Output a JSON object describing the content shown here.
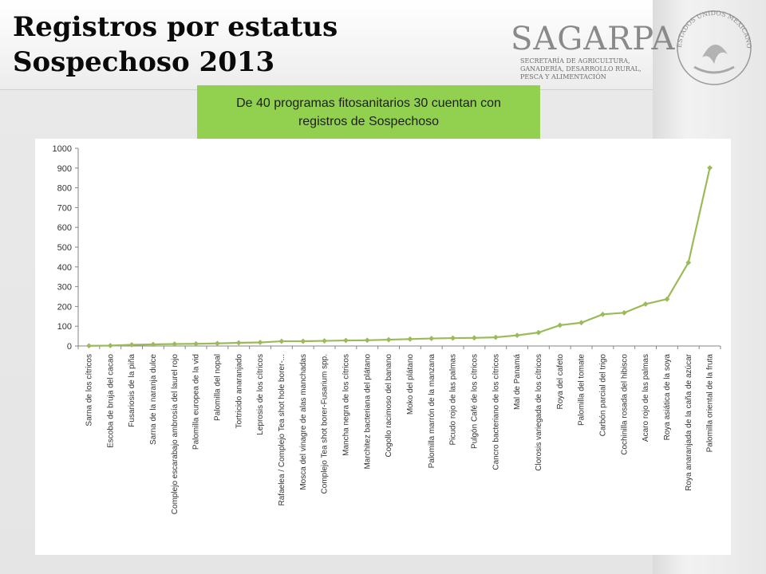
{
  "header": {
    "title": "Registros por estatus Sospechoso 2013",
    "logo_text": "SAGARPA",
    "logo_subtitle": "SECRETARÍA DE AGRICULTURA,\nGANADERÍA, DESARROLLO RURAL,\nPESCA Y ALIMENTACIÓN",
    "seal_text": "ESTADOS UNIDOS MEXICANOS"
  },
  "callout": {
    "text": "De 40 programas fitosanitarios 30 cuentan con registros de Sospechoso"
  },
  "colors": {
    "callout_bg": "#92d050",
    "series_line": "#9bbb59"
  },
  "chart_data": {
    "type": "line",
    "title": "",
    "xlabel": "",
    "ylabel": "",
    "ylim": [
      0,
      1000
    ],
    "yticks": [
      0,
      100,
      200,
      300,
      400,
      500,
      600,
      700,
      800,
      900,
      1000
    ],
    "grid": false,
    "legend": "none",
    "categories": [
      "Sarna de los cítricos",
      "Escoba de bruja del cacao",
      "Fusariosis de la piña",
      "Sarna de la naranja dulce",
      "Complejo escarabajo ambrosía del laurel rojo",
      "Palomilla europea de la vid",
      "Palomilla del nopal",
      "Tortricido anaranjado",
      "Leprosis de los cítricos",
      "Rafaelea / Complejo Tea shot hole borer-...",
      "Mosca del vinagre de alas manchadas",
      "Complejo Tea shot borer-Fusarium spp.",
      "Mancha negra de los cítricos",
      "Marchitez bacteriana del plátano",
      "Cogollo racimoso del banano",
      "Moko del plátano",
      "Palomilla marrón de la manzana",
      "Picudo rojo de las palmas",
      "Pulgón Café de los cítricos",
      "Cancro bacteriano de los cítricos",
      "Mal de Panamá",
      "Clorosis variegada de los cítricos",
      "Roya del cafeto",
      "Palomilla del tomate",
      "Carbón parcial del trigo",
      "Cochinilla rosada del hibisco",
      "Acaro rojo de las palmas",
      "Roya asiática de la soya",
      "Roya anaranjada de la caña de azúcar",
      "Palomilla oriental de la fruta"
    ],
    "series": [
      {
        "values": [
          1,
          2,
          6,
          8,
          10,
          11,
          13,
          16,
          18,
          24,
          24,
          26,
          28,
          29,
          32,
          35,
          38,
          40,
          41,
          44,
          54,
          68,
          105,
          118,
          160,
          168,
          212,
          237,
          422,
          901
        ]
      }
    ]
  }
}
